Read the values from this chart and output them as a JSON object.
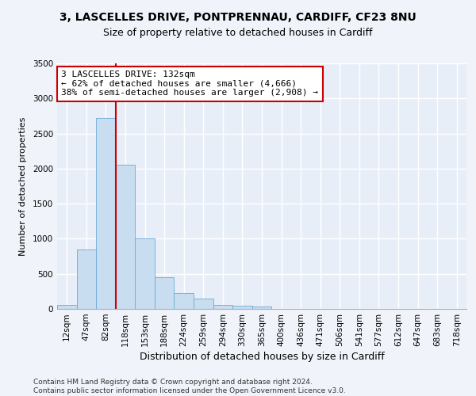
{
  "title_line1": "3, LASCELLES DRIVE, PONTPRENNAU, CARDIFF, CF23 8NU",
  "title_line2": "Size of property relative to detached houses in Cardiff",
  "xlabel": "Distribution of detached houses by size in Cardiff",
  "ylabel": "Number of detached properties",
  "categories": [
    "12sqm",
    "47sqm",
    "82sqm",
    "118sqm",
    "153sqm",
    "188sqm",
    "224sqm",
    "259sqm",
    "294sqm",
    "330sqm",
    "365sqm",
    "400sqm",
    "436sqm",
    "471sqm",
    "506sqm",
    "541sqm",
    "577sqm",
    "612sqm",
    "647sqm",
    "683sqm",
    "718sqm"
  ],
  "values": [
    55,
    850,
    2720,
    2060,
    1000,
    450,
    230,
    145,
    60,
    50,
    30,
    0,
    0,
    0,
    0,
    0,
    0,
    0,
    0,
    0,
    0
  ],
  "bar_color": "#c8ddf0",
  "bar_edge_color": "#6aaad4",
  "vline_color": "#cc0000",
  "annotation_text": "3 LASCELLES DRIVE: 132sqm\n← 62% of detached houses are smaller (4,666)\n38% of semi-detached houses are larger (2,908) →",
  "annotation_box_color": "#cc0000",
  "ylim": [
    0,
    3500
  ],
  "yticks": [
    0,
    500,
    1000,
    1500,
    2000,
    2500,
    3000,
    3500
  ],
  "background_color": "#e8eef8",
  "grid_color": "#ffffff",
  "fig_background": "#f0f4fa",
  "footer": "Contains HM Land Registry data © Crown copyright and database right 2024.\nContains public sector information licensed under the Open Government Licence v3.0.",
  "title_fontsize": 10,
  "subtitle_fontsize": 9,
  "xlabel_fontsize": 9,
  "ylabel_fontsize": 8,
  "tick_fontsize": 7.5,
  "annotation_fontsize": 8,
  "footer_fontsize": 6.5
}
